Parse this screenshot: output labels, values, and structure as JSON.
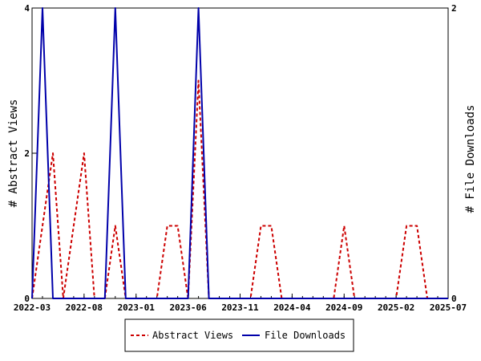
{
  "chart_data": {
    "type": "line",
    "title": "",
    "ylabel_left": "# Abstract Views",
    "ylabel_right": "# File Downloads",
    "ylim_left": [
      0,
      4
    ],
    "ylim_right": [
      0,
      2
    ],
    "yticks_left": [
      "0",
      "2",
      "4"
    ],
    "yticks_right": [
      "0",
      "2"
    ],
    "xlim": [
      "2022-03",
      "2025-07"
    ],
    "xticks": [
      "2022-03",
      "2022-08",
      "2023-01",
      "2023-06",
      "2023-11",
      "2024-04",
      "2024-09",
      "2025-02",
      "2025-07"
    ],
    "grid": false,
    "legend_position": "bottom",
    "x": [
      "2022-03",
      "2022-04",
      "2022-05",
      "2022-06",
      "2022-07",
      "2022-08",
      "2022-09",
      "2022-10",
      "2022-11",
      "2022-12",
      "2023-01",
      "2023-02",
      "2023-03",
      "2023-04",
      "2023-05",
      "2023-06",
      "2023-07",
      "2023-08",
      "2023-09",
      "2023-10",
      "2023-11",
      "2023-12",
      "2024-01",
      "2024-02",
      "2024-03",
      "2024-04",
      "2024-05",
      "2024-06",
      "2024-07",
      "2024-08",
      "2024-09",
      "2024-10",
      "2024-11",
      "2024-12",
      "2025-01",
      "2025-02",
      "2025-03",
      "2025-04",
      "2025-05",
      "2025-06",
      "2025-07"
    ],
    "series": [
      {
        "name": "Abstract Views",
        "axis": "left",
        "color": "#cc0000",
        "style": "dashed",
        "values": [
          0,
          1,
          2,
          0,
          1,
          2,
          0,
          0,
          1,
          0,
          0,
          0,
          0,
          1,
          1,
          0,
          3,
          0,
          0,
          0,
          0,
          0,
          1,
          1,
          0,
          0,
          0,
          0,
          0,
          0,
          1,
          0,
          0,
          0,
          0,
          0,
          1,
          1,
          0,
          0,
          0
        ]
      },
      {
        "name": "File Downloads",
        "axis": "right",
        "color": "#0000aa",
        "style": "solid",
        "values": [
          0,
          2,
          0,
          0,
          0,
          0,
          0,
          0,
          2,
          0,
          0,
          0,
          0,
          0,
          0,
          0,
          2,
          0,
          0,
          0,
          0,
          0,
          0,
          0,
          0,
          0,
          0,
          0,
          0,
          0,
          0,
          0,
          0,
          0,
          0,
          0,
          0,
          0,
          0,
          0,
          0
        ]
      }
    ]
  }
}
